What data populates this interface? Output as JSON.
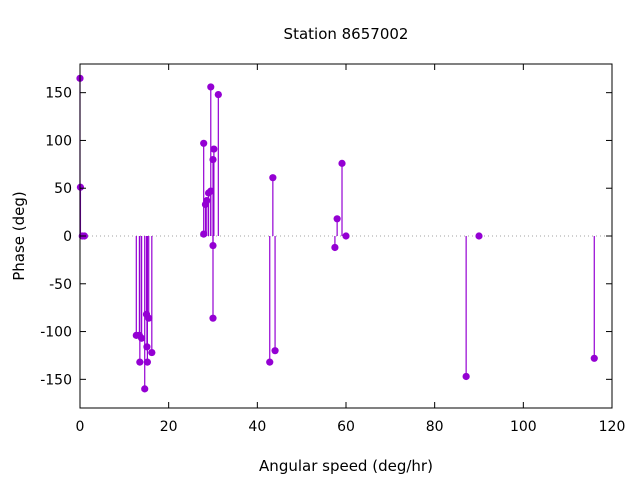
{
  "chart_data": {
    "type": "scatter",
    "style": "impulses-with-points",
    "title": "Station 8657002",
    "xlabel": "Angular speed (deg/hr)",
    "ylabel": "Phase (deg)",
    "xlim": [
      0,
      120
    ],
    "ylim": [
      -180,
      180
    ],
    "xticks": [
      0,
      20,
      40,
      60,
      80,
      100,
      120
    ],
    "yticks": [
      -150,
      -100,
      -50,
      0,
      50,
      100,
      150
    ],
    "zero_line": true,
    "color": "#9400d3",
    "points": [
      {
        "x": 0.0,
        "y": 165
      },
      {
        "x": 0.1,
        "y": 51
      },
      {
        "x": 0.5,
        "y": 0
      },
      {
        "x": 1.0,
        "y": 0
      },
      {
        "x": 12.7,
        "y": -104
      },
      {
        "x": 13.4,
        "y": -104
      },
      {
        "x": 13.5,
        "y": -132
      },
      {
        "x": 13.9,
        "y": -107
      },
      {
        "x": 14.6,
        "y": -160
      },
      {
        "x": 15.0,
        "y": -82
      },
      {
        "x": 15.1,
        "y": -116
      },
      {
        "x": 15.2,
        "y": -132
      },
      {
        "x": 15.5,
        "y": -86
      },
      {
        "x": 16.2,
        "y": -122
      },
      {
        "x": 27.9,
        "y": 97
      },
      {
        "x": 27.9,
        "y": 2
      },
      {
        "x": 28.3,
        "y": 33
      },
      {
        "x": 28.6,
        "y": 37
      },
      {
        "x": 29.0,
        "y": 45
      },
      {
        "x": 29.5,
        "y": 47
      },
      {
        "x": 29.5,
        "y": 156
      },
      {
        "x": 30.0,
        "y": 80
      },
      {
        "x": 30.0,
        "y": -10
      },
      {
        "x": 30.0,
        "y": -86
      },
      {
        "x": 30.2,
        "y": 91
      },
      {
        "x": 31.2,
        "y": 148
      },
      {
        "x": 42.8,
        "y": -132
      },
      {
        "x": 43.5,
        "y": 61
      },
      {
        "x": 44.0,
        "y": -120
      },
      {
        "x": 57.5,
        "y": -12
      },
      {
        "x": 58.0,
        "y": 18
      },
      {
        "x": 59.1,
        "y": 76
      },
      {
        "x": 60.0,
        "y": 0
      },
      {
        "x": 87.1,
        "y": -147
      },
      {
        "x": 90.0,
        "y": 0
      },
      {
        "x": 116.0,
        "y": -128
      }
    ]
  }
}
